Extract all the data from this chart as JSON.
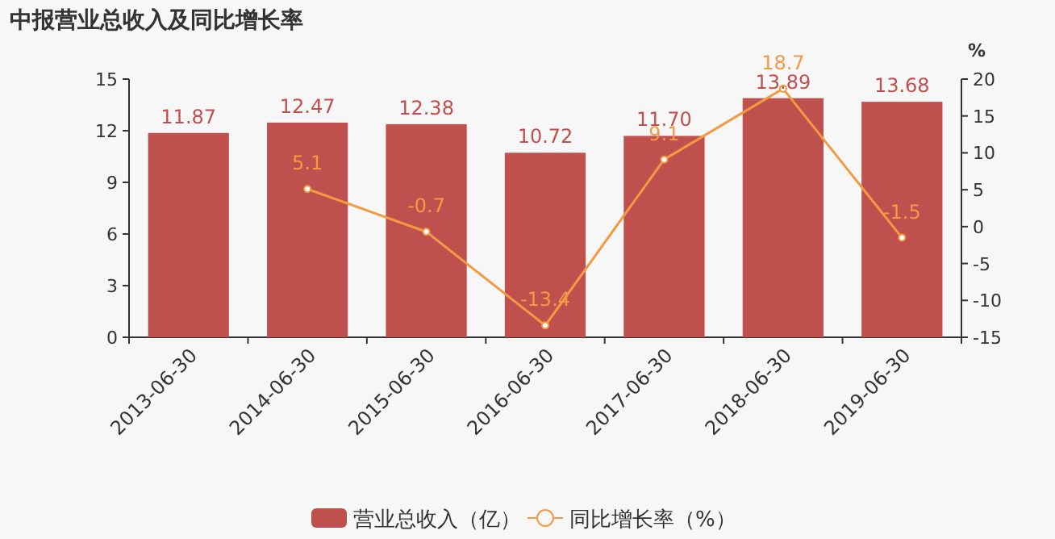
{
  "chart_data": {
    "type": "bar",
    "title": "中报营业总收入及同比增长率",
    "y2label": "%",
    "categories": [
      "2013-06-30",
      "2014-06-30",
      "2015-06-30",
      "2016-06-30",
      "2017-06-30",
      "2018-06-30",
      "2019-06-30"
    ],
    "series": [
      {
        "name": "营业总收入（亿）",
        "color": "#c0504d",
        "values": [
          11.87,
          12.47,
          12.38,
          10.72,
          11.7,
          13.89,
          13.68
        ],
        "value_labels": [
          "11.87",
          "12.47",
          "12.38",
          "10.72",
          "11.70",
          "13.89",
          "13.68"
        ]
      },
      {
        "name": "同比增长率（%）",
        "type": "line",
        "axis": "y2",
        "color": "#f39a44",
        "marker": "circle",
        "values": [
          null,
          5.1,
          -0.7,
          -13.4,
          9.1,
          18.7,
          -1.5
        ]
      }
    ],
    "ylim": [
      0,
      15
    ],
    "yticks": [
      0,
      3,
      6,
      9,
      12,
      15
    ],
    "y2lim": [
      -15,
      20
    ],
    "y2ticks": [
      -15,
      -10,
      -5,
      0,
      5,
      10,
      15,
      20
    ],
    "data_labels": true,
    "legend": "bottom",
    "grid": false
  }
}
